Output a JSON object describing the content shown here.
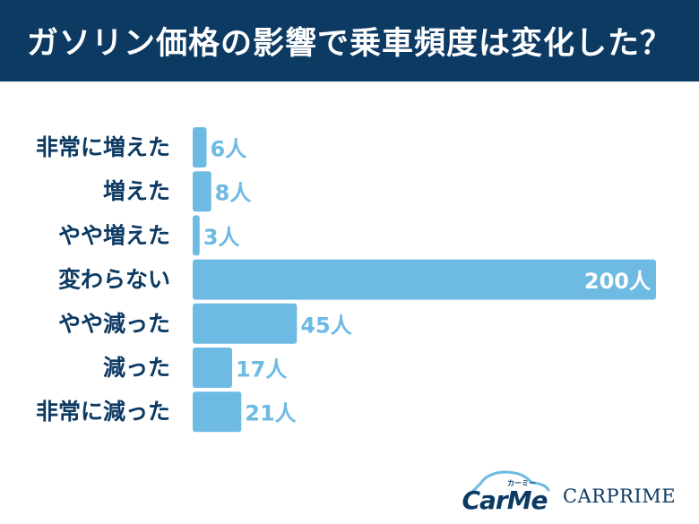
{
  "header": {
    "title": "ガソリン価格の影響で乗車頻度は変化した？"
  },
  "chart_data": {
    "type": "bar",
    "orientation": "horizontal",
    "title": "ガソリン価格の影響で乗車頻度は変化した？",
    "categories": [
      "非常に増えた",
      "増えた",
      "やや増えた",
      "変わらない",
      "やや減った",
      "減った",
      "非常に減った"
    ],
    "values": [
      6,
      8,
      3,
      200,
      45,
      17,
      21
    ],
    "value_suffix": "人",
    "value_labels": [
      "6人",
      "8人",
      "3人",
      "200人",
      "45人",
      "17人",
      "21人"
    ],
    "xlim": [
      0,
      200
    ],
    "grid": false,
    "legend": "none",
    "colors": {
      "bar": "#6dbae3",
      "label": "#0d3a63",
      "value_label": "#6dbae3",
      "value_label_inside": "#ffffff",
      "header_bg": "#0d3a63"
    }
  },
  "logos": {
    "carme": "CarMe",
    "carme_kana": "カーミー",
    "carprime": "CARPRIME"
  }
}
